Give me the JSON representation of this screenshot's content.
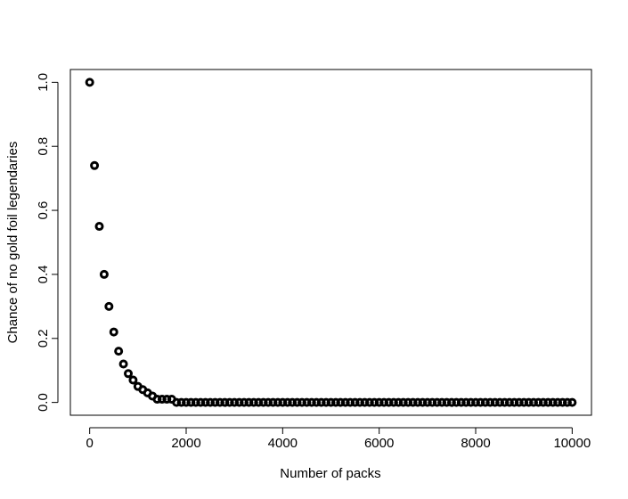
{
  "chart_data": {
    "type": "scatter",
    "x_label": "Number of packs",
    "y_label": "Chance of no gold foil legendaries",
    "color": "#000000",
    "x": [
      0,
      100,
      200,
      300,
      400,
      500,
      600,
      700,
      800,
      900,
      1000,
      1100,
      1200,
      1300,
      1400,
      1500,
      1600,
      1700,
      1800,
      1900,
      2000,
      2100,
      2200,
      2300,
      2400,
      2500,
      2600,
      2700,
      2800,
      2900,
      3000,
      3100,
      3200,
      3300,
      3400,
      3500,
      3600,
      3700,
      3800,
      3900,
      4000,
      4100,
      4200,
      4300,
      4400,
      4500,
      4600,
      4700,
      4800,
      4900,
      5000,
      5100,
      5200,
      5300,
      5400,
      5500,
      5600,
      5700,
      5800,
      5900,
      6000,
      6100,
      6200,
      6300,
      6400,
      6500,
      6600,
      6700,
      6800,
      6900,
      7000,
      7100,
      7200,
      7300,
      7400,
      7500,
      7600,
      7700,
      7800,
      7900,
      8000,
      8100,
      8200,
      8300,
      8400,
      8500,
      8600,
      8700,
      8800,
      8900,
      9000,
      9100,
      9200,
      9300,
      9400,
      9500,
      9600,
      9700,
      9800,
      9900,
      10000
    ],
    "values": [
      1,
      0.74,
      0.55,
      0.4,
      0.3,
      0.22,
      0.16,
      0.12,
      0.09,
      0.07,
      0.05,
      0.04,
      0.03,
      0.02,
      0.01,
      0.01,
      0.01,
      0.01,
      0,
      0,
      0,
      0,
      0,
      0,
      0,
      0,
      0,
      0,
      0,
      0,
      0,
      0,
      0,
      0,
      0,
      0,
      0,
      0,
      0,
      0,
      0,
      0,
      0,
      0,
      0,
      0,
      0,
      0,
      0,
      0,
      0,
      0,
      0,
      0,
      0,
      0,
      0,
      0,
      0,
      0,
      0,
      0,
      0,
      0,
      0,
      0,
      0,
      0,
      0,
      0,
      0,
      0,
      0,
      0,
      0,
      0,
      0,
      0,
      0,
      0,
      0,
      0,
      0,
      0,
      0,
      0,
      0,
      0,
      0,
      0,
      0,
      0,
      0,
      0,
      0,
      0,
      0,
      0,
      0,
      0,
      0
    ],
    "xlim": [
      -400,
      10400
    ],
    "ylim": [
      -0.04,
      1.04
    ],
    "xticks": [
      0,
      2000,
      4000,
      6000,
      8000,
      10000
    ],
    "yticks": [
      {
        "value": 0,
        "label": "0.0"
      },
      {
        "value": 0.2,
        "label": "0.2"
      },
      {
        "value": 0.4,
        "label": "0.4"
      },
      {
        "value": 0.6,
        "label": "0.6"
      },
      {
        "value": 0.8,
        "label": "0.8"
      },
      {
        "value": 1,
        "label": "1.0"
      }
    ]
  }
}
